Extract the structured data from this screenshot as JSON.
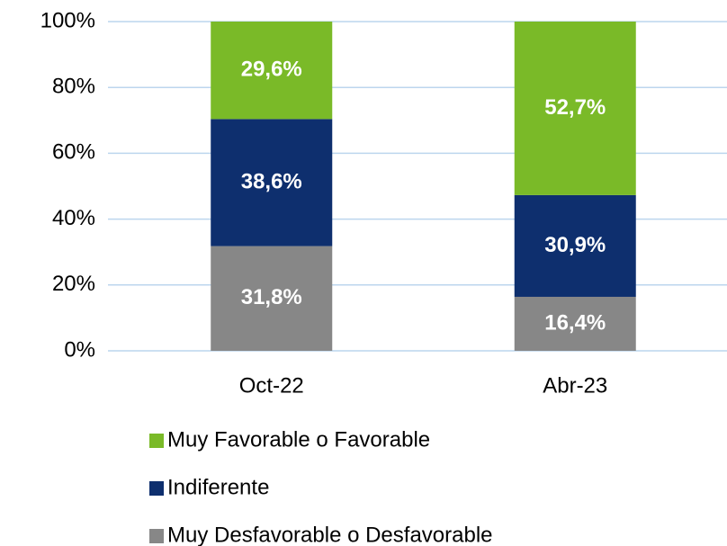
{
  "chart_data": {
    "type": "stacked_bar",
    "categories": [
      "Oct-22",
      "Abr-23"
    ],
    "series": [
      {
        "name": "Muy Desfavorable o Desfavorable",
        "color": "#878787",
        "values": [
          31.8,
          16.4
        ],
        "value_labels": [
          "31,8%",
          "16,4%"
        ]
      },
      {
        "name": "Indiferente",
        "color": "#0e2f6e",
        "values": [
          38.6,
          30.9
        ],
        "value_labels": [
          "38,6%",
          "30,9%"
        ]
      },
      {
        "name": "Muy Favorable o Favorable",
        "color": "#7aba28",
        "values": [
          29.6,
          52.7
        ],
        "value_labels": [
          "29,6%",
          "52,7%"
        ]
      }
    ],
    "ylim": [
      0,
      100
    ],
    "yticks": [
      {
        "value": 0,
        "label": "0%"
      },
      {
        "value": 20,
        "label": "20%"
      },
      {
        "value": 40,
        "label": "40%"
      },
      {
        "value": 60,
        "label": "60%"
      },
      {
        "value": 80,
        "label": "80%"
      },
      {
        "value": 100,
        "label": "100%"
      }
    ],
    "grid": true,
    "legend": "bottom"
  }
}
